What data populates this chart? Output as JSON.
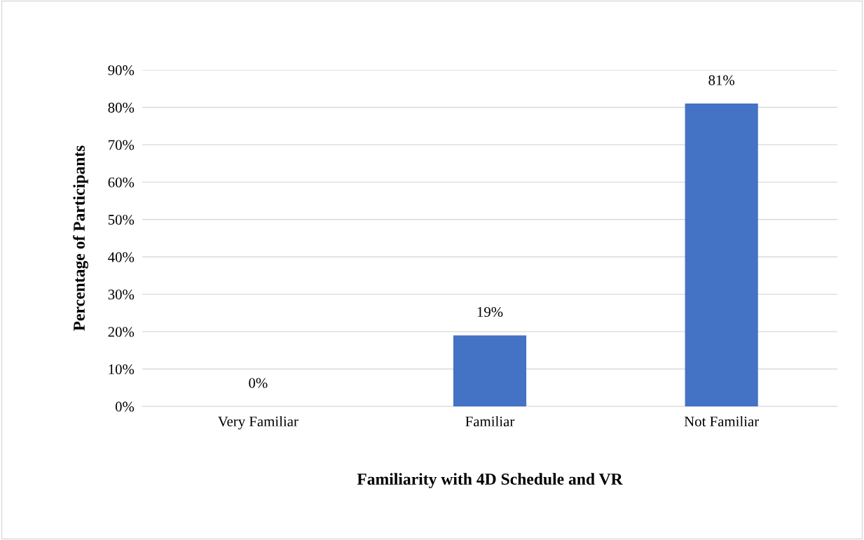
{
  "chart_data": {
    "type": "bar",
    "xlabel": "Familiarity with 4D Schedule and VR",
    "ylabel": "Percentage of Participants",
    "categories": [
      "Very Familiar",
      "Familiar",
      "Not Familiar"
    ],
    "values": [
      0,
      19,
      81
    ],
    "color": "#4472c4",
    "value_labels": [
      "0%",
      "19%",
      "81%"
    ],
    "ylim": [
      0,
      90
    ],
    "yticks": [
      {
        "value": 0,
        "label": "0%"
      },
      {
        "value": 10,
        "label": "10%"
      },
      {
        "value": 20,
        "label": "20%"
      },
      {
        "value": 30,
        "label": "30%"
      },
      {
        "value": 40,
        "label": "40%"
      },
      {
        "value": 50,
        "label": "50%"
      },
      {
        "value": 60,
        "label": "60%"
      },
      {
        "value": 70,
        "label": "70%"
      },
      {
        "value": 80,
        "label": "80%"
      },
      {
        "value": 90,
        "label": "90%"
      }
    ],
    "grid": "y"
  }
}
